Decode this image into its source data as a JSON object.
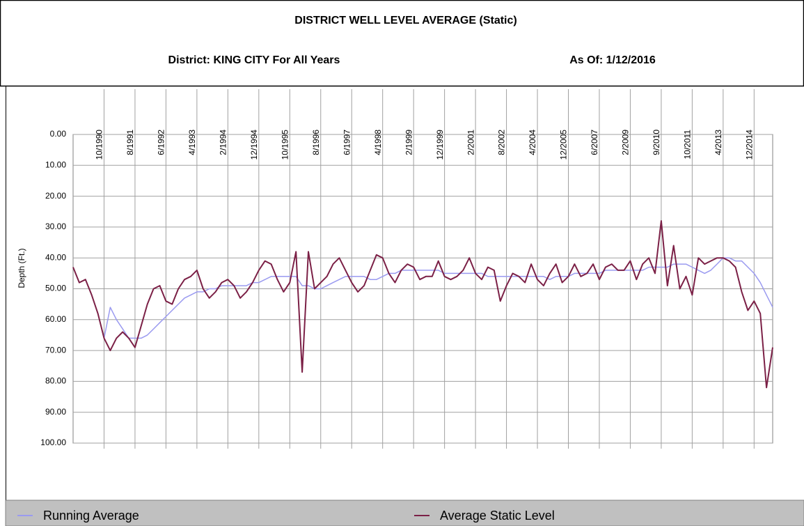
{
  "chart_data": {
    "type": "line",
    "title": "DISTRICT WELL LEVEL AVERAGE (Static)",
    "subtitle": "District: KING CITY For All Years",
    "as_of": "As Of: 1/12/2016",
    "y_label": "Depth (Ft.)",
    "y_inverted": true,
    "grid": true,
    "legend": "bottom",
    "ylim": [
      0,
      100
    ],
    "yticks": [
      {
        "value": 0,
        "label": "0.00"
      },
      {
        "value": 10,
        "label": "10.00"
      },
      {
        "value": 20,
        "label": "20.00"
      },
      {
        "value": 30,
        "label": "30.00"
      },
      {
        "value": 40,
        "label": "40.00"
      },
      {
        "value": 50,
        "label": "50.00"
      },
      {
        "value": 60,
        "label": "60.00"
      },
      {
        "value": 70,
        "label": "70.00"
      },
      {
        "value": 80,
        "label": "80.00"
      },
      {
        "value": 90,
        "label": "90.00"
      },
      {
        "value": 100,
        "label": "100.00"
      }
    ],
    "categories": [
      null,
      null,
      null,
      null,
      null,
      "10/1990",
      null,
      null,
      null,
      null,
      "8/1991",
      null,
      null,
      null,
      null,
      "6/1992",
      null,
      null,
      null,
      null,
      "4/1993",
      null,
      null,
      null,
      null,
      "2/1994",
      null,
      null,
      null,
      null,
      "12/1994",
      null,
      null,
      null,
      null,
      "10/1995",
      null,
      null,
      null,
      null,
      "8/1996",
      null,
      null,
      null,
      null,
      "6/1997",
      null,
      null,
      null,
      null,
      "4/1998",
      null,
      null,
      null,
      null,
      "2/1999",
      null,
      null,
      null,
      null,
      "12/1999",
      null,
      null,
      null,
      null,
      "2/2001",
      null,
      null,
      null,
      null,
      "8/2002",
      null,
      null,
      null,
      null,
      "4/2004",
      null,
      null,
      null,
      null,
      "12/2005",
      null,
      null,
      null,
      null,
      "6/2007",
      null,
      null,
      null,
      null,
      "2/2009",
      null,
      null,
      null,
      null,
      "9/2010",
      null,
      null,
      null,
      null,
      "10/2011",
      null,
      null,
      null,
      null,
      "4/2013",
      null,
      null,
      null,
      null,
      "12/2014",
      null,
      null,
      null
    ],
    "series": [
      {
        "name": "Running Average",
        "color": "#9a9af0",
        "values": [
          null,
          null,
          null,
          null,
          null,
          66,
          56,
          60,
          63,
          66,
          66,
          66,
          65,
          63,
          61,
          59,
          57,
          55,
          53,
          52,
          51,
          51,
          50,
          50,
          49,
          49,
          49,
          49,
          49,
          48,
          48,
          47,
          46,
          46,
          46,
          46,
          46,
          49,
          49,
          50,
          50,
          49,
          48,
          47,
          46,
          46,
          46,
          46,
          47,
          47,
          46,
          45,
          45,
          44,
          44,
          44,
          44,
          44,
          44,
          44,
          45,
          45,
          45,
          45,
          45,
          45,
          45,
          46,
          46,
          46,
          46,
          46,
          46,
          46,
          46,
          46,
          46,
          47,
          46,
          46,
          46,
          45,
          45,
          45,
          45,
          45,
          44,
          44,
          44,
          44,
          44,
          44,
          44,
          43,
          43,
          43,
          43,
          42,
          42,
          42,
          43,
          44,
          45,
          44,
          42,
          40,
          40,
          41,
          41,
          43,
          45,
          48,
          52,
          56
        ]
      },
      {
        "name": "Average Static Level",
        "color": "#7b2046",
        "values": [
          43,
          48,
          47,
          52,
          58,
          66,
          70,
          66,
          64,
          66,
          69,
          62,
          55,
          50,
          49,
          54,
          55,
          50,
          47,
          46,
          44,
          50,
          53,
          51,
          48,
          47,
          49,
          53,
          51,
          48,
          44,
          41,
          42,
          47,
          51,
          48,
          38,
          77,
          38,
          50,
          48,
          46,
          42,
          40,
          44,
          48,
          51,
          49,
          44,
          39,
          40,
          45,
          48,
          44,
          42,
          43,
          47,
          46,
          46,
          41,
          46,
          47,
          46,
          44,
          40,
          45,
          47,
          43,
          44,
          54,
          49,
          45,
          46,
          48,
          42,
          47,
          49,
          45,
          42,
          48,
          46,
          42,
          46,
          45,
          42,
          47,
          43,
          42,
          44,
          44,
          41,
          47,
          42,
          40,
          45,
          28,
          49,
          36,
          50,
          46,
          52,
          40,
          42,
          41,
          40,
          40,
          41,
          43,
          51,
          57,
          54,
          58,
          82,
          69
        ]
      }
    ]
  }
}
